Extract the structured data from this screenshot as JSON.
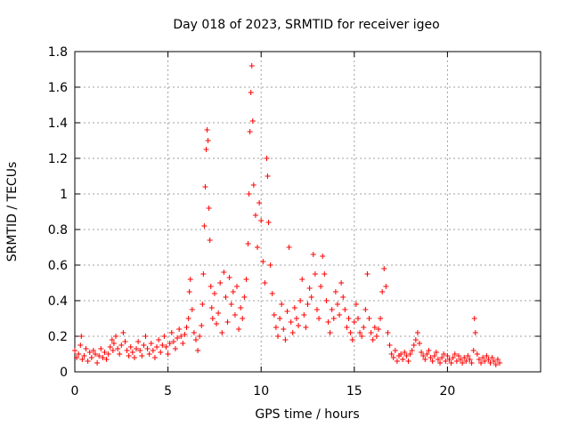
{
  "chart_data": {
    "type": "scatter",
    "title": "Day 018 of 2023, SRMTID for receiver igeo",
    "xlabel": "GPS time / hours",
    "ylabel": "SRMTID / TECUs",
    "xlim": [
      0,
      25
    ],
    "ylim": [
      0,
      1.8
    ],
    "xticks": [
      0,
      5,
      10,
      15,
      20
    ],
    "yticks": [
      0,
      0.2,
      0.4,
      0.6,
      0.8,
      1,
      1.2,
      1.4,
      1.6,
      1.8
    ],
    "xtick_labels": [
      "0",
      "5",
      "10",
      "15",
      "20"
    ],
    "ytick_labels": [
      "0",
      "0.2",
      "0.4",
      "0.6",
      "0.8",
      "1",
      "1.2",
      "1.4",
      "1.6",
      "1.8"
    ],
    "grid": true,
    "marker": "plus",
    "color": "#ff0000",
    "series": [
      {
        "name": "SRMTID",
        "points": [
          [
            0.0,
            0.12
          ],
          [
            0.1,
            0.08
          ],
          [
            0.2,
            0.1
          ],
          [
            0.3,
            0.15
          ],
          [
            0.35,
            0.2
          ],
          [
            0.4,
            0.07
          ],
          [
            0.5,
            0.09
          ],
          [
            0.6,
            0.13
          ],
          [
            0.7,
            0.06
          ],
          [
            0.8,
            0.11
          ],
          [
            0.9,
            0.08
          ],
          [
            1.0,
            0.12
          ],
          [
            1.1,
            0.1
          ],
          [
            1.2,
            0.05
          ],
          [
            1.3,
            0.09
          ],
          [
            1.4,
            0.13
          ],
          [
            1.5,
            0.08
          ],
          [
            1.6,
            0.11
          ],
          [
            1.7,
            0.07
          ],
          [
            1.8,
            0.1
          ],
          [
            1.9,
            0.14
          ],
          [
            2.0,
            0.18
          ],
          [
            2.05,
            0.12
          ],
          [
            2.1,
            0.16
          ],
          [
            2.2,
            0.2
          ],
          [
            2.3,
            0.13
          ],
          [
            2.4,
            0.1
          ],
          [
            2.5,
            0.15
          ],
          [
            2.6,
            0.22
          ],
          [
            2.7,
            0.17
          ],
          [
            2.8,
            0.12
          ],
          [
            2.9,
            0.09
          ],
          [
            3.0,
            0.14
          ],
          [
            3.1,
            0.11
          ],
          [
            3.2,
            0.08
          ],
          [
            3.3,
            0.13
          ],
          [
            3.4,
            0.17
          ],
          [
            3.5,
            0.12
          ],
          [
            3.6,
            0.09
          ],
          [
            3.7,
            0.15
          ],
          [
            3.8,
            0.2
          ],
          [
            3.9,
            0.13
          ],
          [
            4.0,
            0.1
          ],
          [
            4.1,
            0.16
          ],
          [
            4.2,
            0.12
          ],
          [
            4.3,
            0.08
          ],
          [
            4.4,
            0.14
          ],
          [
            4.5,
            0.18
          ],
          [
            4.6,
            0.11
          ],
          [
            4.7,
            0.15
          ],
          [
            4.8,
            0.2
          ],
          [
            4.9,
            0.14
          ],
          [
            5.0,
            0.1
          ],
          [
            5.1,
            0.16
          ],
          [
            5.2,
            0.22
          ],
          [
            5.3,
            0.17
          ],
          [
            5.4,
            0.13
          ],
          [
            5.5,
            0.19
          ],
          [
            5.6,
            0.24
          ],
          [
            5.7,
            0.2
          ],
          [
            5.8,
            0.16
          ],
          [
            5.9,
            0.21
          ],
          [
            6.0,
            0.25
          ],
          [
            6.1,
            0.3
          ],
          [
            6.15,
            0.45
          ],
          [
            6.2,
            0.52
          ],
          [
            6.3,
            0.35
          ],
          [
            6.4,
            0.22
          ],
          [
            6.5,
            0.18
          ],
          [
            6.6,
            0.12
          ],
          [
            6.7,
            0.2
          ],
          [
            6.8,
            0.26
          ],
          [
            6.85,
            0.38
          ],
          [
            6.9,
            0.55
          ],
          [
            6.95,
            0.82
          ],
          [
            7.0,
            1.04
          ],
          [
            7.05,
            1.25
          ],
          [
            7.1,
            1.36
          ],
          [
            7.15,
            1.3
          ],
          [
            7.2,
            0.92
          ],
          [
            7.25,
            0.74
          ],
          [
            7.3,
            0.48
          ],
          [
            7.35,
            0.36
          ],
          [
            7.4,
            0.3
          ],
          [
            7.5,
            0.44
          ],
          [
            7.6,
            0.27
          ],
          [
            7.7,
            0.33
          ],
          [
            7.8,
            0.5
          ],
          [
            7.9,
            0.22
          ],
          [
            8.0,
            0.56
          ],
          [
            8.1,
            0.42
          ],
          [
            8.2,
            0.28
          ],
          [
            8.3,
            0.53
          ],
          [
            8.4,
            0.38
          ],
          [
            8.5,
            0.45
          ],
          [
            8.6,
            0.32
          ],
          [
            8.7,
            0.48
          ],
          [
            8.8,
            0.24
          ],
          [
            8.9,
            0.36
          ],
          [
            9.0,
            0.3
          ],
          [
            9.1,
            0.42
          ],
          [
            9.2,
            0.52
          ],
          [
            9.3,
            0.72
          ],
          [
            9.35,
            1.0
          ],
          [
            9.4,
            1.35
          ],
          [
            9.45,
            1.57
          ],
          [
            9.5,
            1.72
          ],
          [
            9.55,
            1.41
          ],
          [
            9.6,
            1.05
          ],
          [
            9.7,
            0.88
          ],
          [
            9.8,
            0.7
          ],
          [
            9.9,
            0.95
          ],
          [
            10.0,
            0.85
          ],
          [
            10.1,
            0.62
          ],
          [
            10.2,
            0.5
          ],
          [
            10.3,
            1.2
          ],
          [
            10.35,
            1.1
          ],
          [
            10.4,
            0.84
          ],
          [
            10.5,
            0.6
          ],
          [
            10.6,
            0.44
          ],
          [
            10.7,
            0.32
          ],
          [
            10.8,
            0.25
          ],
          [
            10.9,
            0.2
          ],
          [
            11.0,
            0.3
          ],
          [
            11.1,
            0.38
          ],
          [
            11.2,
            0.24
          ],
          [
            11.3,
            0.18
          ],
          [
            11.4,
            0.34
          ],
          [
            11.5,
            0.7
          ],
          [
            11.6,
            0.28
          ],
          [
            11.7,
            0.22
          ],
          [
            11.8,
            0.36
          ],
          [
            11.9,
            0.3
          ],
          [
            12.0,
            0.26
          ],
          [
            12.1,
            0.4
          ],
          [
            12.2,
            0.52
          ],
          [
            12.3,
            0.32
          ],
          [
            12.4,
            0.25
          ],
          [
            12.5,
            0.38
          ],
          [
            12.6,
            0.47
          ],
          [
            12.7,
            0.42
          ],
          [
            12.8,
            0.66
          ],
          [
            12.9,
            0.55
          ],
          [
            13.0,
            0.35
          ],
          [
            13.1,
            0.3
          ],
          [
            13.2,
            0.48
          ],
          [
            13.3,
            0.65
          ],
          [
            13.4,
            0.55
          ],
          [
            13.5,
            0.4
          ],
          [
            13.6,
            0.28
          ],
          [
            13.7,
            0.22
          ],
          [
            13.8,
            0.35
          ],
          [
            13.9,
            0.3
          ],
          [
            14.0,
            0.45
          ],
          [
            14.1,
            0.38
          ],
          [
            14.2,
            0.32
          ],
          [
            14.3,
            0.5
          ],
          [
            14.4,
            0.42
          ],
          [
            14.5,
            0.35
          ],
          [
            14.6,
            0.25
          ],
          [
            14.7,
            0.3
          ],
          [
            14.8,
            0.22
          ],
          [
            14.9,
            0.18
          ],
          [
            15.0,
            0.28
          ],
          [
            15.1,
            0.38
          ],
          [
            15.2,
            0.3
          ],
          [
            15.3,
            0.22
          ],
          [
            15.4,
            0.2
          ],
          [
            15.5,
            0.25
          ],
          [
            15.6,
            0.35
          ],
          [
            15.7,
            0.55
          ],
          [
            15.8,
            0.3
          ],
          [
            15.9,
            0.22
          ],
          [
            16.0,
            0.18
          ],
          [
            16.1,
            0.25
          ],
          [
            16.2,
            0.2
          ],
          [
            16.3,
            0.24
          ],
          [
            16.4,
            0.3
          ],
          [
            16.5,
            0.45
          ],
          [
            16.6,
            0.58
          ],
          [
            16.7,
            0.48
          ],
          [
            16.8,
            0.22
          ],
          [
            16.9,
            0.15
          ],
          [
            17.0,
            0.1
          ],
          [
            17.1,
            0.08
          ],
          [
            17.2,
            0.12
          ],
          [
            17.3,
            0.06
          ],
          [
            17.4,
            0.09
          ],
          [
            17.5,
            0.1
          ],
          [
            17.6,
            0.07
          ],
          [
            17.7,
            0.11
          ],
          [
            17.8,
            0.09
          ],
          [
            17.9,
            0.06
          ],
          [
            18.0,
            0.1
          ],
          [
            18.1,
            0.12
          ],
          [
            18.2,
            0.15
          ],
          [
            18.3,
            0.18
          ],
          [
            18.4,
            0.22
          ],
          [
            18.5,
            0.16
          ],
          [
            18.6,
            0.11
          ],
          [
            18.7,
            0.09
          ],
          [
            18.8,
            0.07
          ],
          [
            18.9,
            0.1
          ],
          [
            19.0,
            0.12
          ],
          [
            19.1,
            0.08
          ],
          [
            19.2,
            0.06
          ],
          [
            19.3,
            0.09
          ],
          [
            19.4,
            0.11
          ],
          [
            19.5,
            0.07
          ],
          [
            19.6,
            0.05
          ],
          [
            19.7,
            0.08
          ],
          [
            19.8,
            0.1
          ],
          [
            19.9,
            0.06
          ],
          [
            20.0,
            0.09
          ],
          [
            20.1,
            0.07
          ],
          [
            20.2,
            0.05
          ],
          [
            20.3,
            0.08
          ],
          [
            20.4,
            0.1
          ],
          [
            20.5,
            0.06
          ],
          [
            20.6,
            0.09
          ],
          [
            20.7,
            0.07
          ],
          [
            20.8,
            0.05
          ],
          [
            20.9,
            0.08
          ],
          [
            21.0,
            0.06
          ],
          [
            21.1,
            0.09
          ],
          [
            21.2,
            0.07
          ],
          [
            21.3,
            0.05
          ],
          [
            21.4,
            0.12
          ],
          [
            21.45,
            0.3
          ],
          [
            21.5,
            0.22
          ],
          [
            21.6,
            0.1
          ],
          [
            21.7,
            0.07
          ],
          [
            21.8,
            0.05
          ],
          [
            21.9,
            0.08
          ],
          [
            22.0,
            0.06
          ],
          [
            22.1,
            0.09
          ],
          [
            22.2,
            0.07
          ],
          [
            22.3,
            0.05
          ],
          [
            22.4,
            0.08
          ],
          [
            22.5,
            0.06
          ],
          [
            22.6,
            0.04
          ],
          [
            22.7,
            0.07
          ],
          [
            22.8,
            0.05
          ]
        ]
      }
    ]
  }
}
